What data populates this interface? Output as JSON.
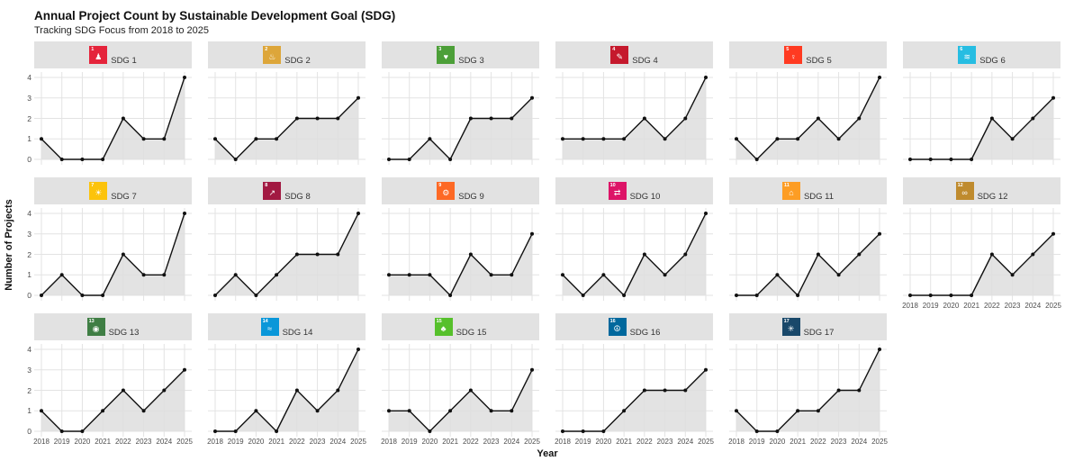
{
  "title": "Annual Project Count by Sustainable Development Goal (SDG)",
  "subtitle": "Tracking SDG Focus from 2018 to 2025",
  "colors": {
    "strip_bg": "#e2e2e2",
    "grid": "#e3e3e3",
    "area_fill": "#dedede",
    "line": "#111111",
    "panel_bg": "#ffffff",
    "tick_text": "#4d4d4d"
  },
  "chart_data": {
    "type": "line",
    "title": "Annual Project Count by Sustainable Development Goal (SDG)",
    "subtitle": "Tracking SDG Focus from 2018 to 2025",
    "xlabel": "Year",
    "ylabel": "Number of Projects",
    "x": [
      "2018",
      "2019",
      "2020",
      "2021",
      "2022",
      "2023",
      "2024",
      "2025"
    ],
    "ylim": [
      0,
      4
    ],
    "yticks": [
      0,
      1,
      2,
      3,
      4
    ],
    "grid": "on",
    "layout_columns": 6,
    "facets": [
      {
        "label": "SDG 1",
        "number": "1",
        "color": "#E5243B",
        "icon_glyph": "♟",
        "values": [
          1,
          0,
          0,
          0,
          2,
          1,
          1,
          4
        ]
      },
      {
        "label": "SDG 2",
        "number": "2",
        "color": "#DDA63A",
        "icon_glyph": "♨",
        "values": [
          1,
          0,
          1,
          1,
          2,
          2,
          2,
          3
        ]
      },
      {
        "label": "SDG 3",
        "number": "3",
        "color": "#4C9F38",
        "icon_glyph": "♥",
        "values": [
          0,
          0,
          1,
          0,
          2,
          2,
          2,
          3
        ]
      },
      {
        "label": "SDG 4",
        "number": "4",
        "color": "#C5192D",
        "icon_glyph": "✎",
        "values": [
          1,
          1,
          1,
          1,
          2,
          1,
          2,
          4
        ]
      },
      {
        "label": "SDG 5",
        "number": "5",
        "color": "#FF3A21",
        "icon_glyph": "♀",
        "values": [
          1,
          0,
          1,
          1,
          2,
          1,
          2,
          4
        ]
      },
      {
        "label": "SDG 6",
        "number": "6",
        "color": "#26BDE2",
        "icon_glyph": "≋",
        "values": [
          0,
          0,
          0,
          0,
          2,
          1,
          2,
          3
        ]
      },
      {
        "label": "SDG 7",
        "number": "7",
        "color": "#FCC30B",
        "icon_glyph": "☀",
        "values": [
          0,
          1,
          0,
          0,
          2,
          1,
          1,
          4
        ]
      },
      {
        "label": "SDG 8",
        "number": "8",
        "color": "#A21942",
        "icon_glyph": "↗",
        "values": [
          0,
          1,
          0,
          1,
          2,
          2,
          2,
          4
        ]
      },
      {
        "label": "SDG 9",
        "number": "9",
        "color": "#FD6925",
        "icon_glyph": "⚙",
        "values": [
          1,
          1,
          1,
          0,
          2,
          1,
          1,
          3
        ]
      },
      {
        "label": "SDG 10",
        "number": "10",
        "color": "#DD1367",
        "icon_glyph": "⇄",
        "values": [
          1,
          0,
          1,
          0,
          2,
          1,
          2,
          4
        ]
      },
      {
        "label": "SDG 11",
        "number": "11",
        "color": "#FD9D24",
        "icon_glyph": "⌂",
        "values": [
          0,
          0,
          1,
          0,
          2,
          1,
          2,
          3
        ]
      },
      {
        "label": "SDG 12",
        "number": "12",
        "color": "#BF8B2E",
        "icon_glyph": "∞",
        "values": [
          0,
          0,
          0,
          0,
          2,
          1,
          2,
          3
        ]
      },
      {
        "label": "SDG 13",
        "number": "13",
        "color": "#3F7E44",
        "icon_glyph": "◉",
        "values": [
          1,
          0,
          0,
          1,
          2,
          1,
          2,
          3
        ]
      },
      {
        "label": "SDG 14",
        "number": "14",
        "color": "#0A97D9",
        "icon_glyph": "≈",
        "values": [
          0,
          0,
          1,
          0,
          2,
          1,
          2,
          4
        ]
      },
      {
        "label": "SDG 15",
        "number": "15",
        "color": "#56C02B",
        "icon_glyph": "♣",
        "values": [
          1,
          1,
          0,
          1,
          2,
          1,
          1,
          3
        ]
      },
      {
        "label": "SDG 16",
        "number": "16",
        "color": "#00689D",
        "icon_glyph": "☮",
        "values": [
          0,
          0,
          0,
          1,
          2,
          2,
          2,
          3
        ]
      },
      {
        "label": "SDG 17",
        "number": "17",
        "color": "#19486A",
        "icon_glyph": "✳",
        "values": [
          1,
          0,
          0,
          1,
          1,
          2,
          2,
          4
        ]
      }
    ]
  }
}
